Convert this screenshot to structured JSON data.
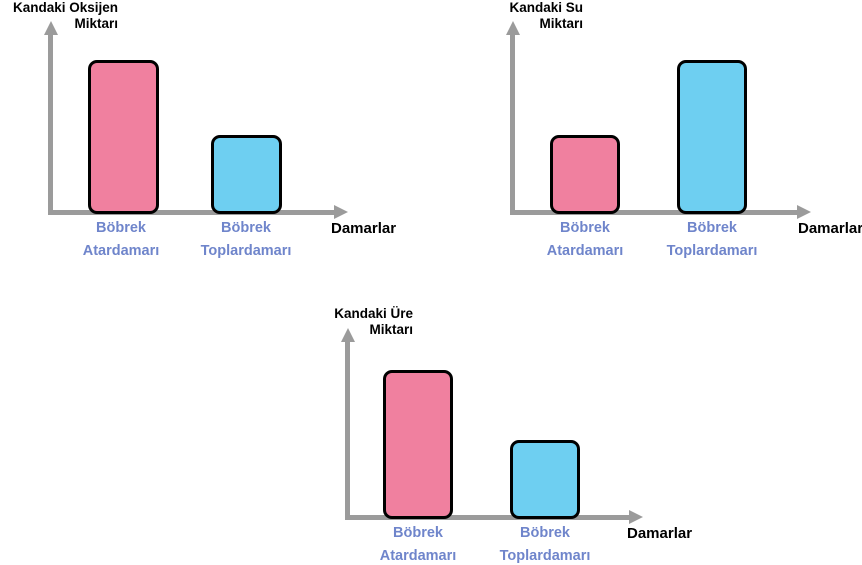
{
  "colors": {
    "artery_bar_fill": "#f0809f",
    "vein_bar_fill": "#6ecff1",
    "bar_border": "#000000",
    "axis": "#9b9b9b",
    "category_label_text": "#6f85cb",
    "title_text": "#000000"
  },
  "chart_data": [
    {
      "type": "bar",
      "title": "Kandaki Oksijen Miktarı",
      "title_lines": [
        "Kandaki Oksijen",
        "Miktarı"
      ],
      "ylabel": "Kandaki Oksijen Miktarı",
      "xlabel": "Damarlar",
      "categories": [
        "Böbrek Atardamarı",
        "Böbrek Toplardamarı"
      ],
      "category_lines": [
        [
          "Böbrek",
          "Atardamarı"
        ],
        [
          "Böbrek",
          "Toplardamarı"
        ]
      ],
      "values": [
        100,
        51
      ],
      "bar_colors": [
        "#f0809f",
        "#6ecff1"
      ],
      "grid": false,
      "legend": false
    },
    {
      "type": "bar",
      "title": "Kandaki Su Miktarı",
      "title_lines": [
        "Kandaki Su",
        "Miktarı"
      ],
      "ylabel": "Kandaki Su Miktarı",
      "xlabel": "Damarlar",
      "categories": [
        "Böbrek Atardamarı",
        "Böbrek Toplardamarı"
      ],
      "category_lines": [
        [
          "Böbrek",
          "Atardamarı"
        ],
        [
          "Böbrek",
          "Toplardamarı"
        ]
      ],
      "values": [
        51,
        100
      ],
      "bar_colors": [
        "#f0809f",
        "#6ecff1"
      ],
      "grid": false,
      "legend": false
    },
    {
      "type": "bar",
      "title": "Kandaki Üre Miktarı",
      "title_lines": [
        "Kandaki Üre",
        "Miktarı"
      ],
      "ylabel": "Kandaki Üre Miktarı",
      "xlabel": "Damarlar",
      "categories": [
        "Böbrek Atardamarı",
        "Böbrek Toplardamarı"
      ],
      "category_lines": [
        [
          "Böbrek",
          "Atardamarı"
        ],
        [
          "Böbrek",
          "Toplardamarı"
        ]
      ],
      "values": [
        100,
        53
      ],
      "bar_colors": [
        "#f0809f",
        "#6ecff1"
      ],
      "grid": false,
      "legend": false
    }
  ]
}
